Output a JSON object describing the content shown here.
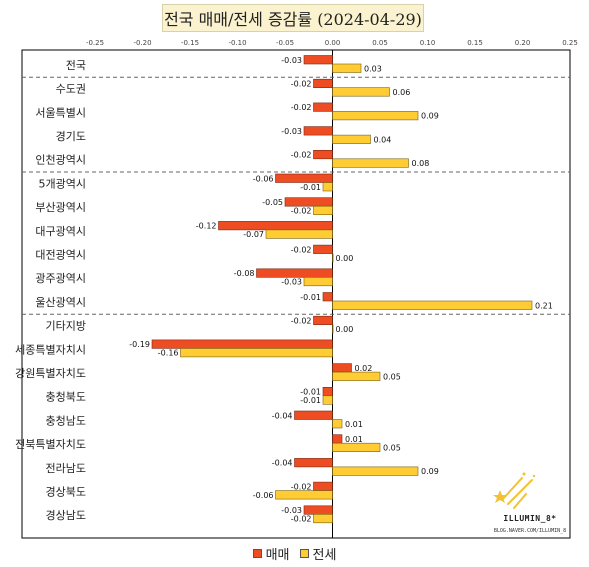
{
  "title": "전국 매매/전세 증감률 (2024-04-29)",
  "colors": {
    "sale": "#ee4d24",
    "rent": "#ffcc33",
    "sale_stroke": "#7a2a12",
    "rent_stroke": "#7a6010"
  },
  "legend": {
    "sale": "매매",
    "rent": "전세"
  },
  "watermark": {
    "name": "ILLUMIN_8*",
    "url": "BLOG.NAVER.COM/ILLUMIN_8",
    "icon": "shooting-stars-icon"
  },
  "chart_data": {
    "type": "bar",
    "orientation": "horizontal",
    "title": "전국 매매/전세 증감률 (2024-04-29)",
    "xlim": [
      -0.25,
      0.25
    ],
    "x_ticks": [
      "-0.25",
      "-0.20",
      "-0.15",
      "-0.10",
      "-0.05",
      "0.00",
      "0.05",
      "0.10",
      "0.15",
      "0.20",
      "0.25"
    ],
    "tick_values": [
      -0.25,
      -0.2,
      -0.15,
      -0.1,
      -0.05,
      0,
      0.05,
      0.1,
      0.15,
      0.2,
      0.25
    ],
    "grid": false,
    "legend_position": "bottom",
    "categories": [
      "전국",
      "수도권",
      "서울특별시",
      "경기도",
      "인천광역시",
      "5개광역시",
      "부산광역시",
      "대구광역시",
      "대전광역시",
      "광주광역시",
      "울산광역시",
      "기타지방",
      "세종특별자치시",
      "강원특별자치도",
      "충청북도",
      "충청남도",
      "전북특별자치도",
      "전라남도",
      "경상북도",
      "경상남도"
    ],
    "group_separators_after": [
      0,
      4,
      10
    ],
    "series": [
      {
        "name": "매매",
        "values": [
          -0.03,
          -0.02,
          -0.02,
          -0.03,
          -0.02,
          -0.06,
          -0.05,
          -0.12,
          -0.02,
          -0.08,
          -0.01,
          -0.02,
          -0.19,
          0.02,
          -0.01,
          -0.04,
          0.01,
          -0.04,
          -0.02,
          -0.03
        ],
        "labels": [
          "-0.03",
          "-0.02",
          "-0.02",
          "-0.03",
          "-0.02",
          "-0.06",
          "-0.05",
          "-0.12",
          "-0.02",
          "-0.08",
          "-0.01",
          "-0.02",
          "-0.19",
          "0.02",
          "-0.01",
          "-0.04",
          "0.01",
          "-0.04",
          "-0.02",
          "-0.03"
        ]
      },
      {
        "name": "전세",
        "values": [
          0.03,
          0.06,
          0.09,
          0.04,
          0.08,
          -0.01,
          -0.02,
          -0.07,
          0.0,
          -0.03,
          0.21,
          0.0,
          -0.16,
          0.05,
          -0.01,
          0.01,
          0.05,
          0.09,
          -0.06,
          -0.02
        ],
        "labels": [
          "0.03",
          "0.06",
          "0.09",
          "0.04",
          "0.08",
          "-0.01",
          "-0.02",
          "-0.07",
          "0.00",
          "-0.03",
          "0.21",
          "0.00",
          "-0.16",
          "0.05",
          "-0.01",
          "0.01",
          "0.05",
          "0.09",
          "-0.06",
          "-0.02"
        ]
      }
    ]
  }
}
